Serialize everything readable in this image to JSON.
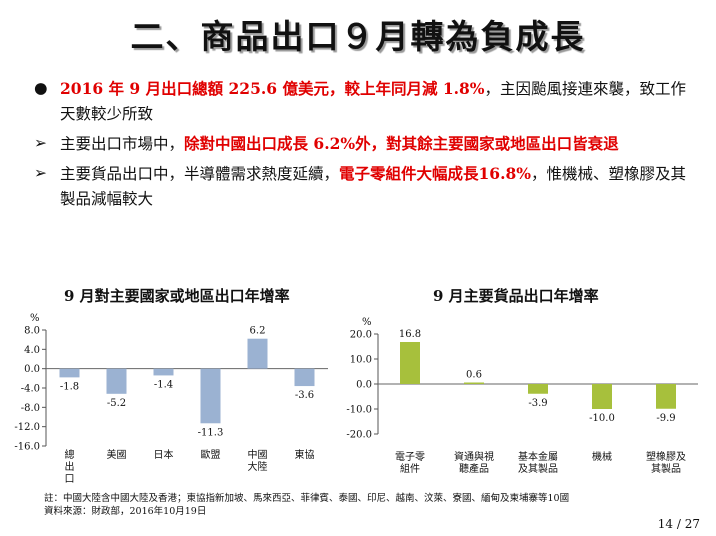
{
  "title": "二、商品出口９月轉為負成長",
  "bullets": [
    {
      "marker": "●",
      "parts": [
        {
          "text": "2016 年 9 月出口總額 225.6 億美元，較上年同月減 1.8%",
          "red": true
        },
        {
          "text": "，主因颱風接連來襲，致工作天數較少所致",
          "red": false
        }
      ]
    },
    {
      "marker": "➢",
      "parts": [
        {
          "text": "主要出口市場中，",
          "red": false
        },
        {
          "text": "除對中國出口成長 6.2%外，對其餘主要國家或地區出口皆衰退",
          "red": true
        }
      ]
    },
    {
      "marker": "➢",
      "parts": [
        {
          "text": "主要貨品出口中，半導體需求熱度延續，",
          "red": false
        },
        {
          "text": "電子零組件大幅成長16.8%",
          "red": true
        },
        {
          "text": "，惟機械、塑橡膠及其製品減幅較大",
          "red": false
        }
      ]
    }
  ],
  "chart_data": [
    {
      "type": "bar",
      "title": "9 月對主要國家或地區出口年增率",
      "unit": "%",
      "categories": [
        "總出口",
        "美國",
        "日本",
        "歐盟",
        "中國大陸",
        "東協"
      ],
      "values": [
        -1.8,
        -5.2,
        -1.4,
        -11.3,
        6.2,
        -3.6
      ],
      "value_labels": [
        "-1.8",
        "-5.2",
        "-1.4",
        "-11.3",
        "6.2",
        "-3.6"
      ],
      "yticks": [
        "8.0",
        "4.0",
        "0.0",
        "-4.0",
        "-8.0",
        "-12.0",
        "-16.0"
      ],
      "ylim": [
        -16,
        8
      ],
      "color": "#9bb2d2"
    },
    {
      "type": "bar",
      "title": "9 月主要貨品出口年增率",
      "unit": "%",
      "categories": [
        "電子零組件",
        "資通與視聽產品",
        "基本金屬及其製品",
        "機械",
        "塑橡膠及其製品"
      ],
      "values": [
        16.8,
        0.6,
        -3.9,
        -10.0,
        -9.9
      ],
      "value_labels": [
        "16.8",
        "0.6",
        "-3.9",
        "-10.0",
        "-9.9"
      ],
      "yticks": [
        "20.0",
        "10.0",
        "0.0",
        "-10.0",
        "-20.0"
      ],
      "ylim": [
        -20,
        20
      ],
      "color": "#a7c03c"
    }
  ],
  "footnote": "註：中國大陸含中國大陸及香港；東協指新加坡、馬來西亞、菲律賓、泰國、印尼、越南、汶萊、寮國、緬甸及柬埔寨等10國",
  "source": "資料來源：財政部，2016年10月19日",
  "page": "14 / 27"
}
